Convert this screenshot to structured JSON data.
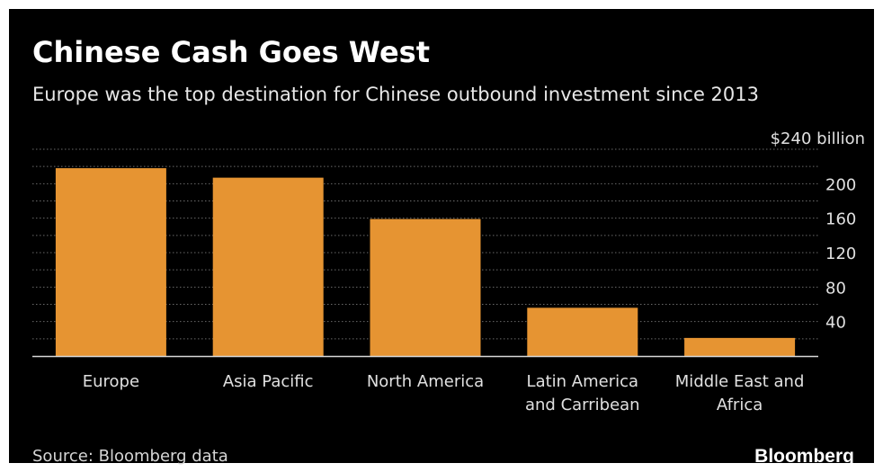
{
  "chart_data": {
    "type": "bar",
    "title": "Chinese Cash Goes West",
    "subtitle": "Europe was the top destination for Chinese outbound investment since 2013",
    "categories": [
      [
        "Europe"
      ],
      [
        "Asia Pacific"
      ],
      [
        "North America"
      ],
      [
        "Latin America",
        "and Carribean"
      ],
      [
        "Middle East and",
        "Africa"
      ]
    ],
    "values": [
      218,
      207,
      159,
      56,
      21
    ],
    "ylim": [
      0,
      240
    ],
    "yticks": [
      40,
      80,
      120,
      160,
      200
    ],
    "ytick_top_label": "$240 billion",
    "grid": true,
    "bar_color": "#e69432",
    "source": "Source: Bloomberg data"
  },
  "brand": "Bloomberg"
}
